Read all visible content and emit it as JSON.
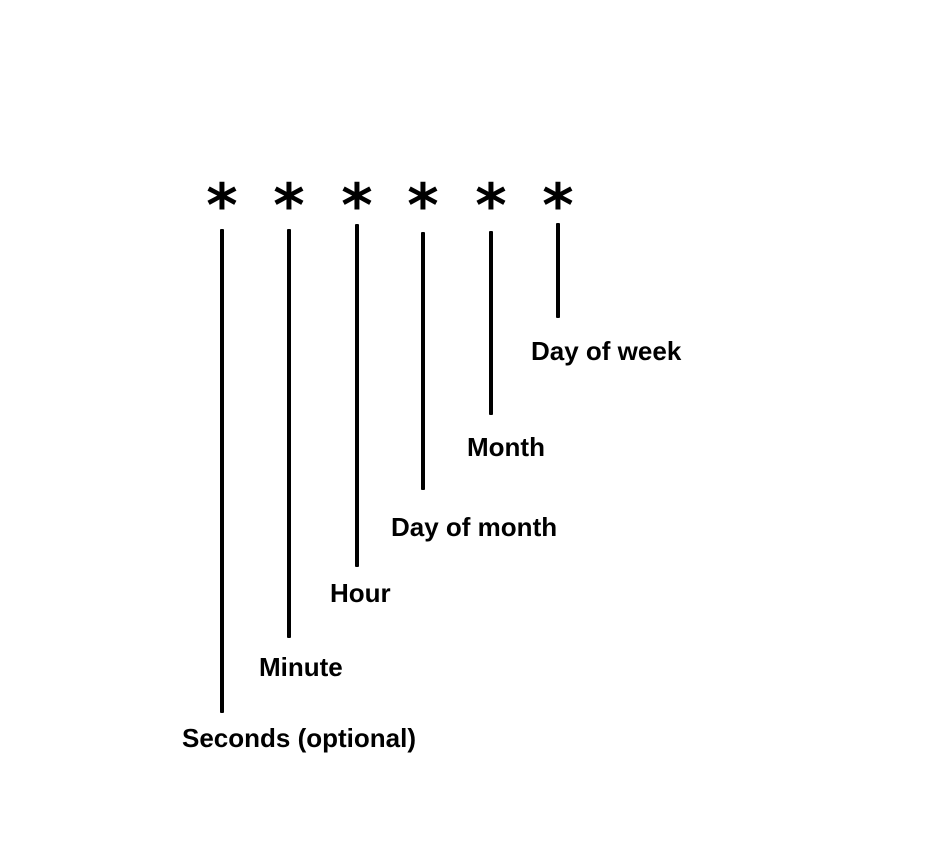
{
  "fields": [
    {
      "symbol": "*",
      "label": "Seconds (optional)"
    },
    {
      "symbol": "*",
      "label": "Minute"
    },
    {
      "symbol": "*",
      "label": "Hour"
    },
    {
      "symbol": "*",
      "label": "Day of month"
    },
    {
      "symbol": "*",
      "label": "Month"
    },
    {
      "symbol": "*",
      "label": "Day of week"
    }
  ]
}
